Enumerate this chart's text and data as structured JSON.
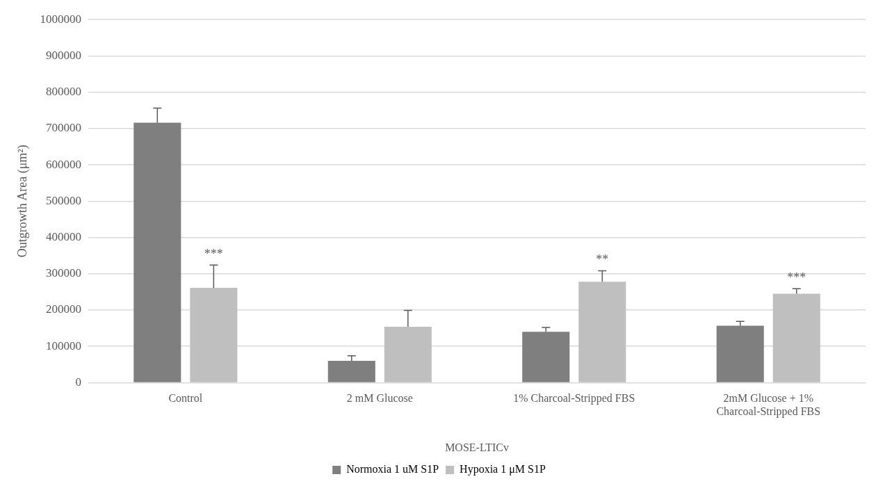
{
  "chart_data": {
    "type": "bar",
    "ylabel": "Outgrowth Area (μm²)",
    "xlabel": "MOSE-LTICv",
    "categories": [
      "Control",
      "2 mM Glucose",
      "1% Charcoal-Stripped FBS",
      "2mM Glucose + 1% Charcoal-Stripped FBS"
    ],
    "series": [
      {
        "name": "Normoxia 1 uM S1P",
        "color": "#7f7f7f",
        "values": [
          716000,
          60000,
          140000,
          157000
        ],
        "errors": [
          40000,
          14000,
          12000,
          12000
        ]
      },
      {
        "name": "Hypoxia 1 μM S1P",
        "color": "#bfbfbf",
        "values": [
          261000,
          154000,
          278000,
          245000
        ],
        "errors": [
          63000,
          45000,
          30000,
          14000
        ],
        "value_labels": [
          "***",
          null,
          "**",
          "***"
        ]
      }
    ],
    "ylim": [
      0,
      1000000
    ],
    "yticks": [
      0,
      100000,
      200000,
      300000,
      400000,
      500000,
      600000,
      700000,
      800000,
      900000,
      1000000
    ],
    "grid": "y",
    "legend": "bottom"
  }
}
